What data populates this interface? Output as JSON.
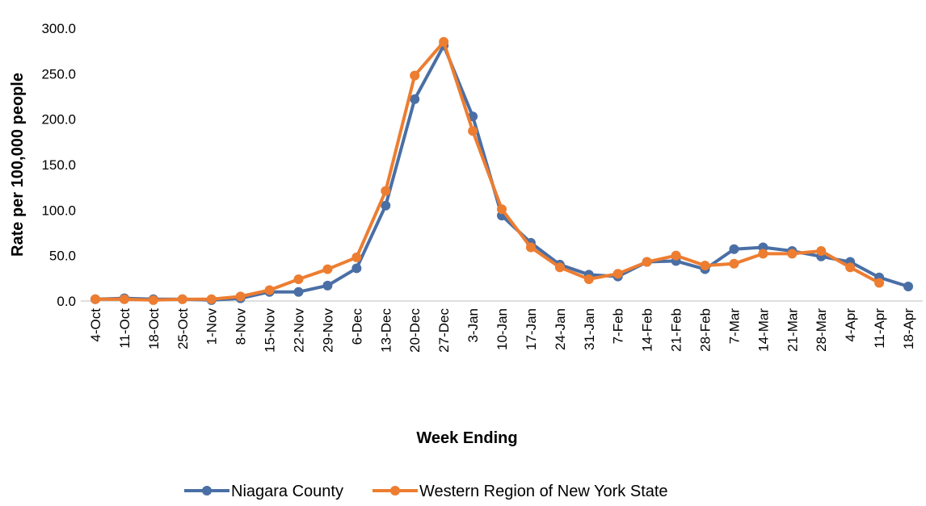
{
  "chart_data": {
    "type": "line",
    "y_label": "Rate per 100,000 people",
    "x_label": "Week Ending",
    "categories": [
      "4-Oct",
      "11-Oct",
      "18-Oct",
      "25-Oct",
      "1-Nov",
      "8-Nov",
      "15-Nov",
      "22-Nov",
      "29-Nov",
      "6-Dec",
      "13-Dec",
      "20-Dec",
      "27-Dec",
      "3-Jan",
      "10-Jan",
      "17-Jan",
      "24-Jan",
      "31-Jan",
      "7-Feb",
      "14-Feb",
      "21-Feb",
      "28-Feb",
      "7-Mar",
      "14-Mar",
      "21-Mar",
      "28-Mar",
      "4-Apr",
      "11-Apr",
      "18-Apr"
    ],
    "series": [
      {
        "name": "Niagara County",
        "color": "#4a6fa5",
        "values": [
          2,
          3,
          2,
          2,
          1,
          3,
          10,
          10,
          17,
          36,
          105,
          222,
          281,
          203,
          94,
          64,
          40,
          29,
          27,
          43,
          44,
          35,
          57,
          59,
          55,
          49,
          43,
          26,
          16
        ]
      },
      {
        "name": "Western Region of New York State",
        "color": "#ed7d31",
        "values": [
          2,
          2,
          1,
          2,
          2,
          5,
          12,
          24,
          35,
          48,
          121,
          248,
          285,
          187,
          101,
          59,
          37,
          24,
          30,
          43,
          50,
          39,
          41,
          52,
          52,
          55,
          37,
          20,
          null
        ]
      }
    ],
    "ylim": [
      0,
      300
    ],
    "yticks": [
      {
        "value": 0,
        "label": "0.0"
      },
      {
        "value": 50,
        "label": "50.0"
      },
      {
        "value": 100,
        "label": "100.0"
      },
      {
        "value": 150,
        "label": "150.0"
      },
      {
        "value": 200,
        "label": "200.0"
      },
      {
        "value": 250,
        "label": "250.0"
      },
      {
        "value": 300,
        "label": "300.0"
      }
    ],
    "grid": false,
    "legend": "bottom"
  }
}
